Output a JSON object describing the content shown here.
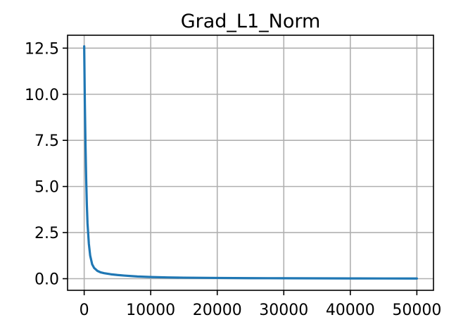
{
  "chart_data": {
    "type": "line",
    "title": "Grad_L1_Norm",
    "xlabel": "",
    "ylabel": "",
    "xlim": [
      -2500,
      52500
    ],
    "ylim": [
      -0.63,
      13.2
    ],
    "grid": true,
    "x_ticks": [
      0,
      10000,
      20000,
      30000,
      40000,
      50000
    ],
    "x_tick_labels": [
      "0",
      "10000",
      "20000",
      "30000",
      "40000",
      "50000"
    ],
    "y_ticks": [
      0.0,
      2.5,
      5.0,
      7.5,
      10.0,
      12.5
    ],
    "y_tick_labels": [
      "0.0",
      "2.5",
      "5.0",
      "7.5",
      "10.0",
      "12.5"
    ],
    "series": [
      {
        "color": "#1f77b4",
        "x": [
          0,
          100,
          200,
          300,
          400,
          500,
          700,
          900,
          1200,
          1500,
          2000,
          2500,
          3000,
          4000,
          5000,
          6000,
          8000,
          10000,
          12500,
          15000,
          20000,
          25000,
          30000,
          35000,
          40000,
          45000,
          50000
        ],
        "y": [
          12.6,
          9.5,
          7.2,
          5.4,
          4.0,
          3.0,
          1.9,
          1.25,
          0.78,
          0.58,
          0.42,
          0.34,
          0.3,
          0.24,
          0.2,
          0.17,
          0.12,
          0.09,
          0.07,
          0.055,
          0.04,
          0.03,
          0.025,
          0.02,
          0.016,
          0.013,
          0.01
        ]
      }
    ]
  }
}
